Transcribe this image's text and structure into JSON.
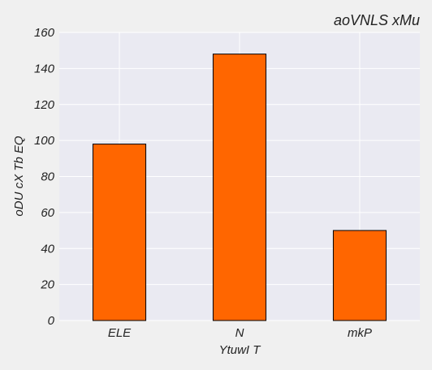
{
  "chart_data": {
    "type": "bar",
    "title": "aoVNLS xMu",
    "xlabel": "YtuwI T",
    "ylabel": "oDU cX Tb EQ",
    "categories": [
      "ELE",
      "N",
      "mkP"
    ],
    "values": [
      98,
      148,
      50
    ],
    "ylim": [
      0,
      160
    ],
    "yticks": [
      0,
      20,
      40,
      60,
      80,
      100,
      120,
      140,
      160
    ],
    "grid": true,
    "bar_color": "#ff6600",
    "bar_edge_color": "#000000",
    "plot_background": "#eaeaf2",
    "grid_color": "#ffffff"
  }
}
